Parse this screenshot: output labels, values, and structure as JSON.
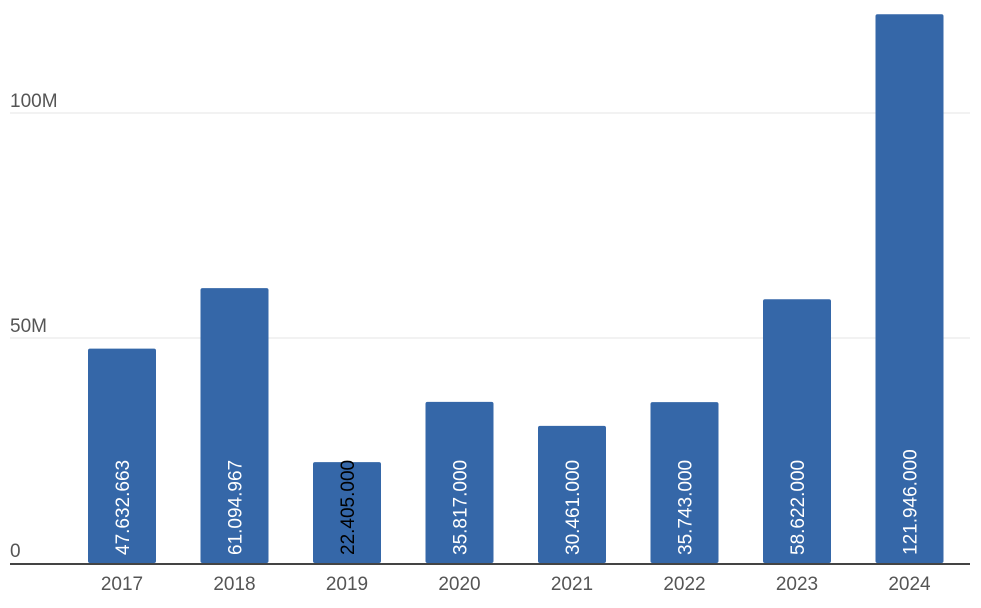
{
  "chart_data": {
    "type": "bar",
    "categories": [
      "2017",
      "2018",
      "2019",
      "2020",
      "2021",
      "2022",
      "2023",
      "2024"
    ],
    "values": [
      47632663,
      61094967,
      22405000,
      35817000,
      30461000,
      35743000,
      58622000,
      121946000
    ],
    "data_labels": [
      "47.632.663",
      "61.094.967",
      "22.405.000",
      "35.817.000",
      "30.461.000",
      "35.743.000",
      "58.622.000",
      "121.946.000"
    ],
    "y_ticks": [
      {
        "value": 0,
        "label": "0"
      },
      {
        "value": 50000000,
        "label": "50M"
      },
      {
        "value": 100000000,
        "label": "100M"
      }
    ],
    "ylim": [
      0,
      122000000
    ],
    "grid": true,
    "bar_color": "#3567a8",
    "label_color_inside": "#ffffff",
    "label_color_outside": "#000000",
    "axis_color": "#444444",
    "grid_color": "#e6e6e6"
  }
}
